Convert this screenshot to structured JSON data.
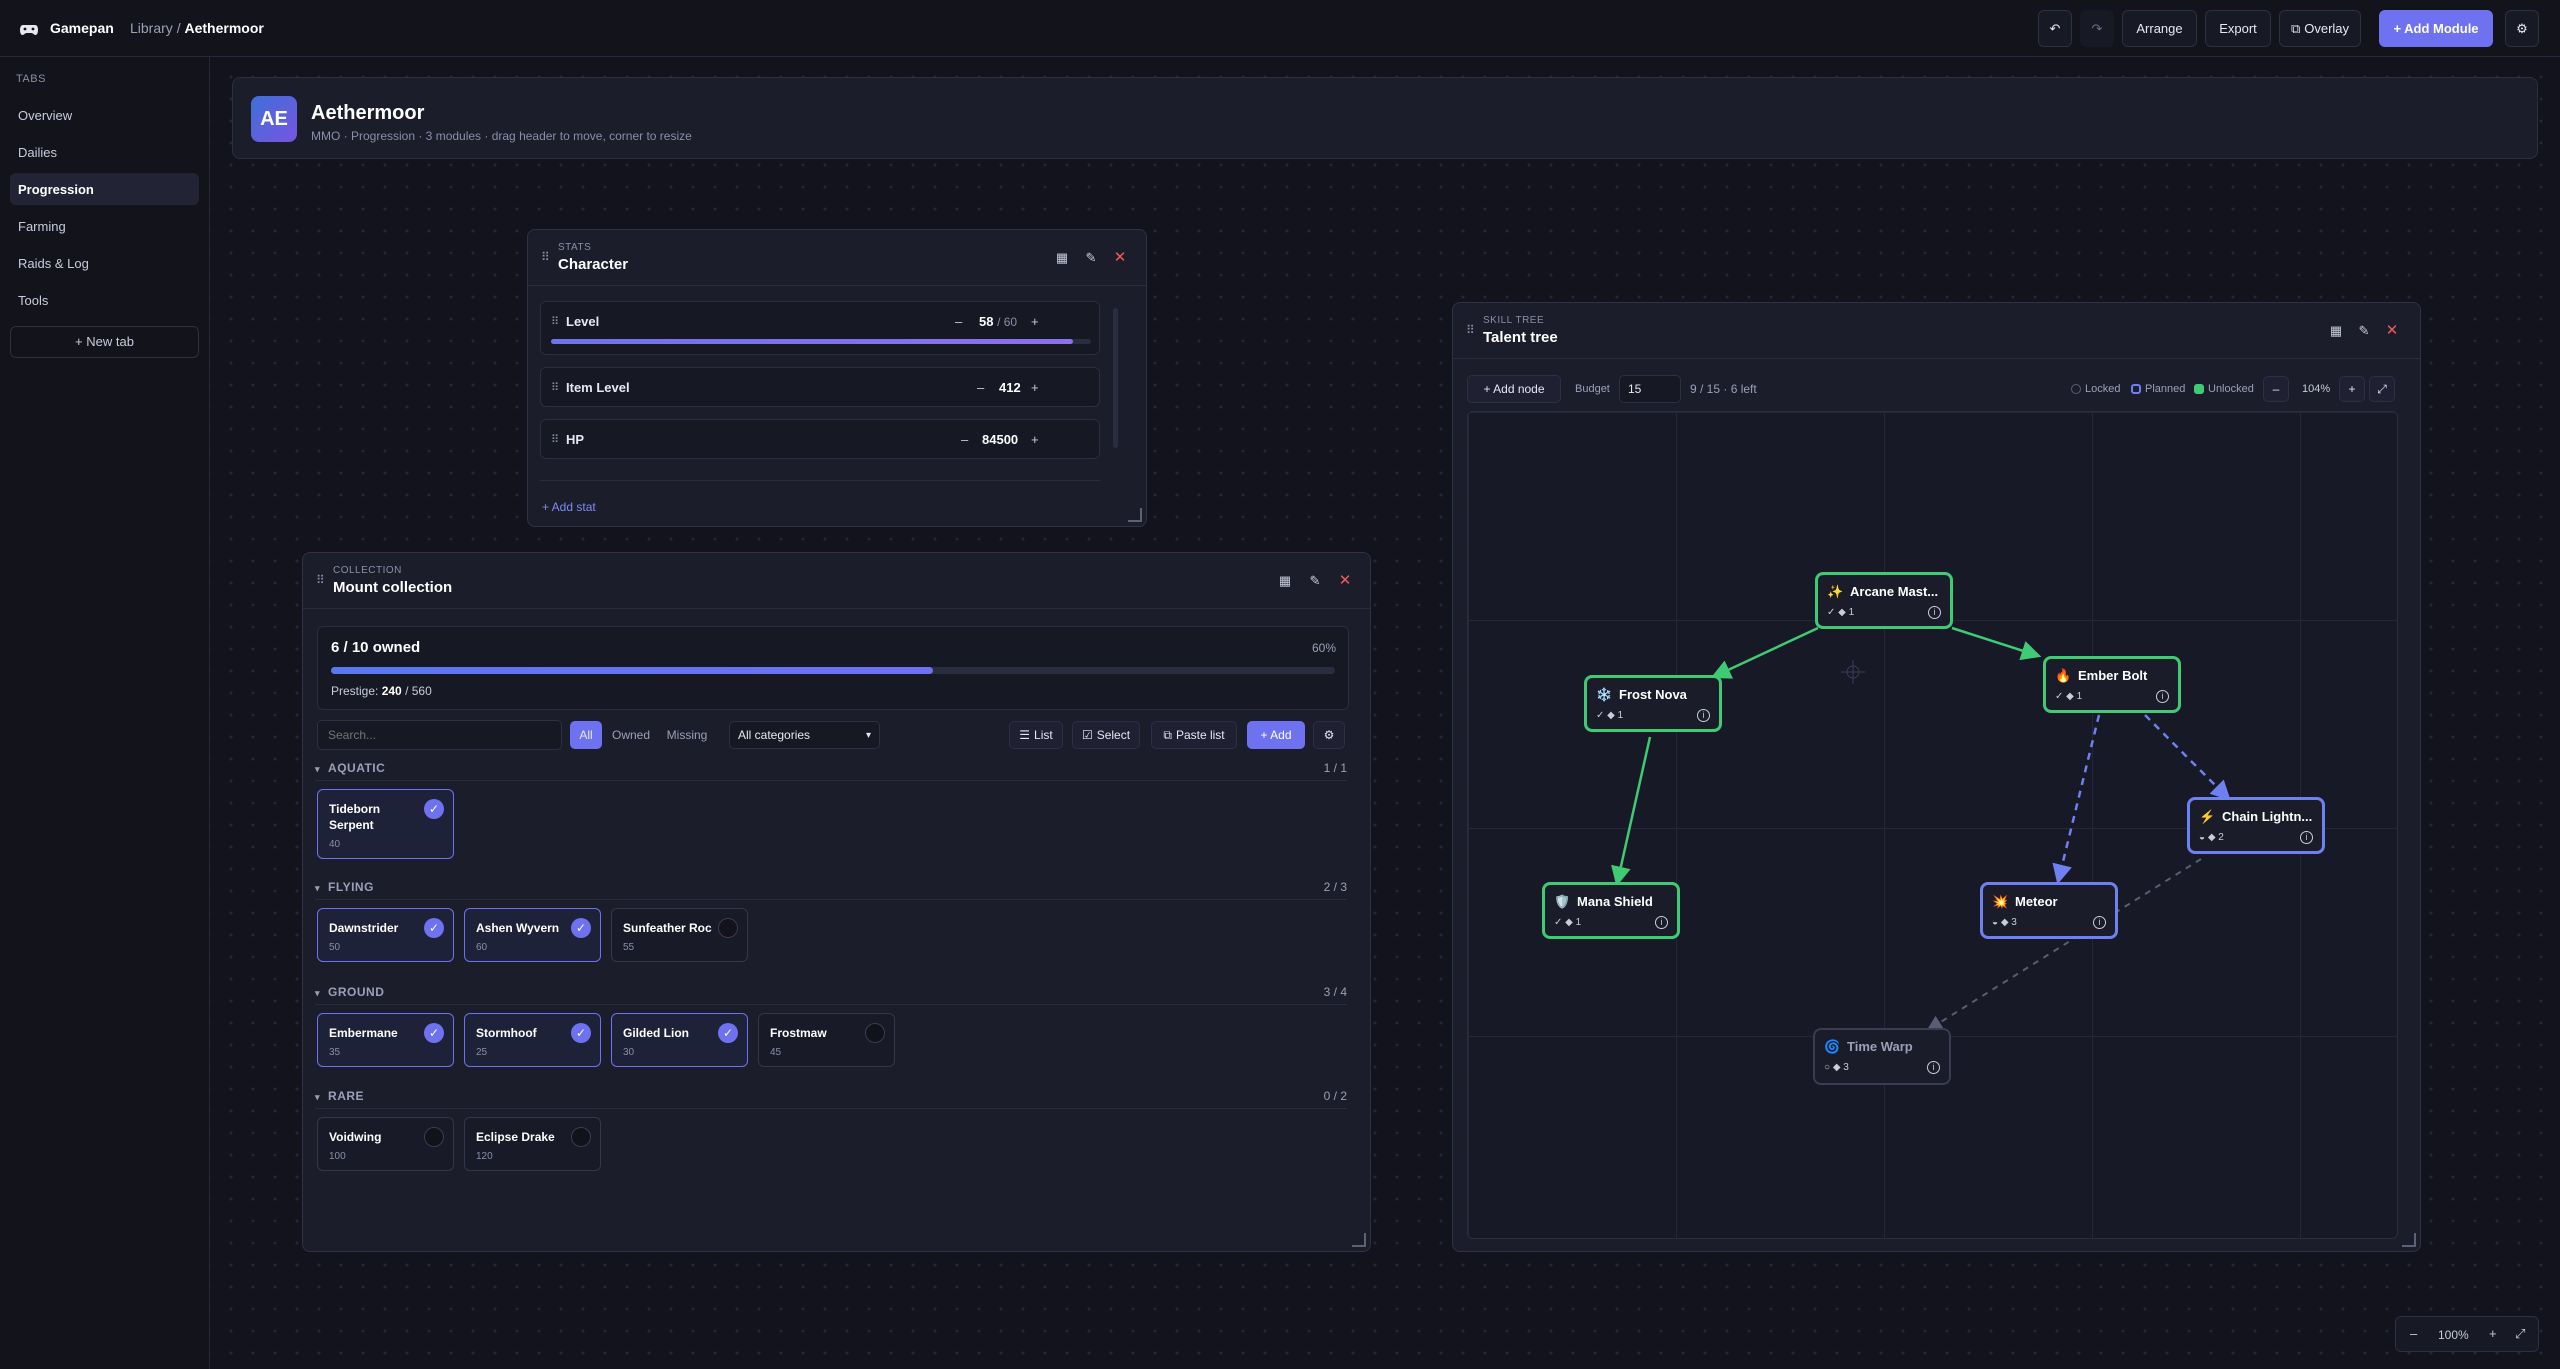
{
  "app": {
    "brand": "Gamepan",
    "crumb_parent": "Library",
    "crumb_sep": "/",
    "crumb_current": "Aethermoor"
  },
  "toolbar": {
    "undo": "↶",
    "redo": "↷",
    "arrange": "Arrange",
    "export": "Export",
    "overlay": "Overlay",
    "add_module": "+ Add Module",
    "settings": "⚙"
  },
  "sidebar": {
    "section": "TABS",
    "items": [
      {
        "label": "Overview"
      },
      {
        "label": "Dailies"
      },
      {
        "label": "Progression"
      },
      {
        "label": "Farming"
      },
      {
        "label": "Raids & Log"
      },
      {
        "label": "Tools"
      }
    ],
    "active": "Progression",
    "new_tab": "+ New tab"
  },
  "header": {
    "avatar": "AE",
    "title": "Aethermoor",
    "subtitle": "MMO · Progression · 3 modules · drag header to move, corner to resize"
  },
  "stats": {
    "kind": "STATS",
    "title": "Character",
    "rows": [
      {
        "label": "Level",
        "value": "58",
        "max": "/ 60",
        "progress": 0.967
      },
      {
        "label": "Item Level",
        "value": "412"
      },
      {
        "label": "HP",
        "value": "84500"
      }
    ],
    "add": "+ Add stat",
    "minus": "–",
    "plus": "+"
  },
  "collection": {
    "kind": "COLLECTION",
    "title": "Mount collection",
    "owned_text": "6 / 10 owned",
    "percent": "60%",
    "progress": 0.6,
    "prestige_label": "Prestige:",
    "prestige_value": "240",
    "prestige_max": "/ 560",
    "search_placeholder": "Search...",
    "filters": [
      "All",
      "Owned",
      "Missing"
    ],
    "category_select": "All categories",
    "buttons": {
      "list": "List",
      "select": "Select",
      "paste": "Paste list",
      "add": "+ Add",
      "gear": "⚙"
    },
    "categories": [
      {
        "name": "AQUATIC",
        "count": "1 / 1",
        "items": [
          {
            "name": "Tideborn Serpent",
            "prestige": "40",
            "owned": true
          }
        ]
      },
      {
        "name": "FLYING",
        "count": "2 / 3",
        "items": [
          {
            "name": "Dawnstrider",
            "prestige": "50",
            "owned": true
          },
          {
            "name": "Ashen Wyvern",
            "prestige": "60",
            "owned": true
          },
          {
            "name": "Sunfeather Roc",
            "prestige": "55",
            "owned": false
          }
        ]
      },
      {
        "name": "GROUND",
        "count": "3 / 4",
        "items": [
          {
            "name": "Embermane",
            "prestige": "35",
            "owned": true
          },
          {
            "name": "Stormhoof",
            "prestige": "25",
            "owned": true
          },
          {
            "name": "Gilded Lion",
            "prestige": "30",
            "owned": true
          },
          {
            "name": "Frostmaw",
            "prestige": "45",
            "owned": false
          }
        ]
      },
      {
        "name": "RARE",
        "count": "0 / 2",
        "items": [
          {
            "name": "Voidwing",
            "prestige": "100",
            "owned": false
          },
          {
            "name": "Eclipse Drake",
            "prestige": "120",
            "owned": false
          }
        ]
      }
    ]
  },
  "talent": {
    "kind": "SKILL TREE",
    "title": "Talent tree",
    "add_node": "+ Add node",
    "budget_label": "Budget",
    "budget_value": "15",
    "budget_status": "9 / 15 · 6 left",
    "legend": {
      "locked": "Locked",
      "planned": "Planned",
      "unlocked": "Unlocked"
    },
    "zoom": "104%",
    "nodes": [
      {
        "name": "Arcane Mast...",
        "icon": "✨",
        "status": "✓ ◆ 1",
        "state": "unlocked"
      },
      {
        "name": "Frost Nova",
        "icon": "❄️",
        "status": "✓ ◆ 1",
        "state": "unlocked"
      },
      {
        "name": "Ember Bolt",
        "icon": "🔥",
        "status": "✓ ◆ 1",
        "state": "unlocked"
      },
      {
        "name": "Chain Lightn...",
        "icon": "⚡",
        "status": "◒ ◆ 2",
        "state": "planned"
      },
      {
        "name": "Mana Shield",
        "icon": "🛡️",
        "status": "✓ ◆ 1",
        "state": "unlocked"
      },
      {
        "name": "Meteor",
        "icon": "💥",
        "status": "◒ ◆ 3",
        "state": "planned"
      },
      {
        "name": "Time Warp",
        "icon": "🌀",
        "status": "○ ◆ 3",
        "state": "locked"
      }
    ]
  },
  "canvas": {
    "zoom": "100%",
    "minus": "–",
    "plus": "+",
    "fit": "⤢"
  },
  "colors": {
    "accent": "#6f72f0",
    "unlocked": "#3ecb74",
    "planned": "#6f80f0",
    "locked": "#3a3c52",
    "danger": "#f05a5a"
  }
}
